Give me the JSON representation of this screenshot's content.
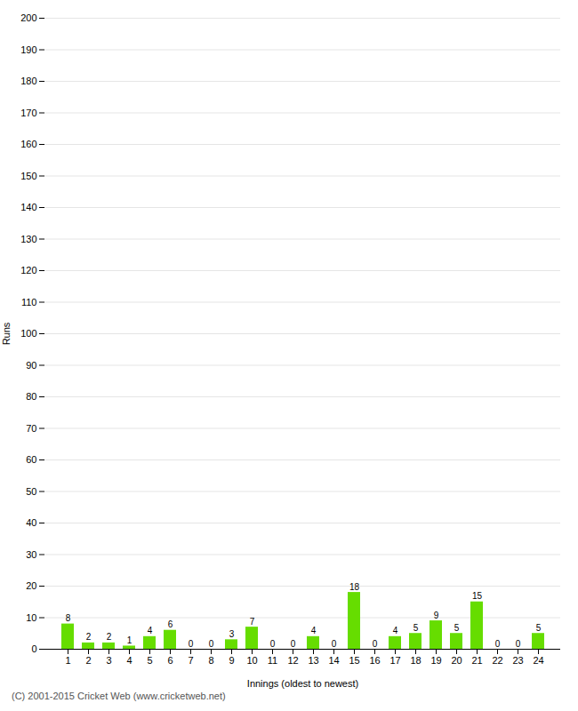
{
  "chart_data": {
    "type": "bar",
    "xlabel": "Innings (oldest to newest)",
    "ylabel": "Runs",
    "categories": [
      1,
      2,
      3,
      4,
      5,
      6,
      7,
      8,
      9,
      10,
      11,
      12,
      13,
      14,
      15,
      16,
      17,
      18,
      19,
      20,
      21,
      22,
      23,
      24
    ],
    "values": [
      8,
      2,
      2,
      1,
      4,
      6,
      0,
      0,
      3,
      7,
      0,
      0,
      4,
      0,
      18,
      0,
      4,
      5,
      9,
      5,
      15,
      0,
      0,
      5
    ],
    "color": "#66dd00",
    "ylim": [
      0,
      200
    ],
    "yticks": [
      0,
      10,
      20,
      30,
      40,
      50,
      60,
      70,
      80,
      90,
      100,
      110,
      120,
      130,
      140,
      150,
      160,
      170,
      180,
      190,
      200
    ],
    "grid": true,
    "data_labels": true,
    "annotations": [
      "(C) 2001-2015 Cricket Web (www.cricketweb.net)"
    ]
  }
}
